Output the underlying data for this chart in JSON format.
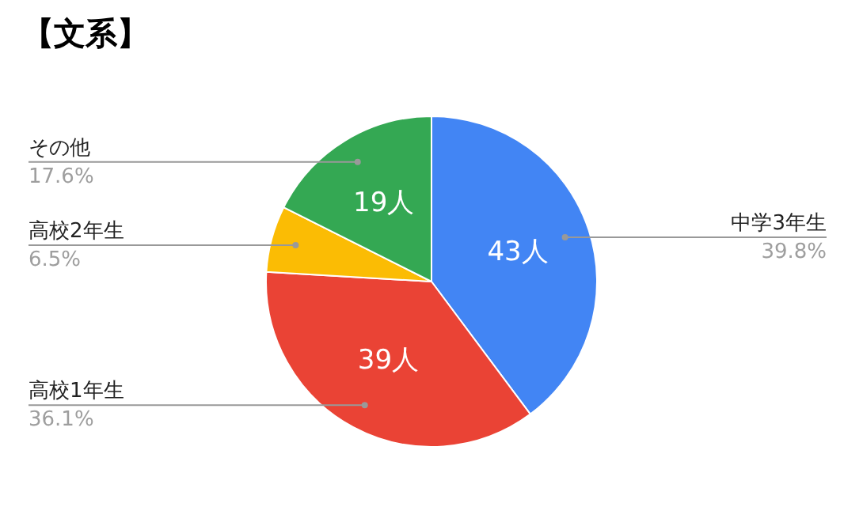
{
  "chart_data": {
    "type": "pie",
    "title": "【文系】",
    "categories": [
      "中学3年生",
      "高校1年生",
      "高校2年生",
      "その他"
    ],
    "values": [
      43,
      39,
      7,
      19
    ],
    "colors": [
      "#4285f4",
      "#ea4335",
      "#fbbc04",
      "#34a853"
    ],
    "value_labels": [
      "43人",
      "39人",
      null,
      "19人"
    ],
    "annotations": [
      "39.8%",
      "36.1%",
      "6.5%",
      "17.6%"
    ],
    "legend": false
  }
}
